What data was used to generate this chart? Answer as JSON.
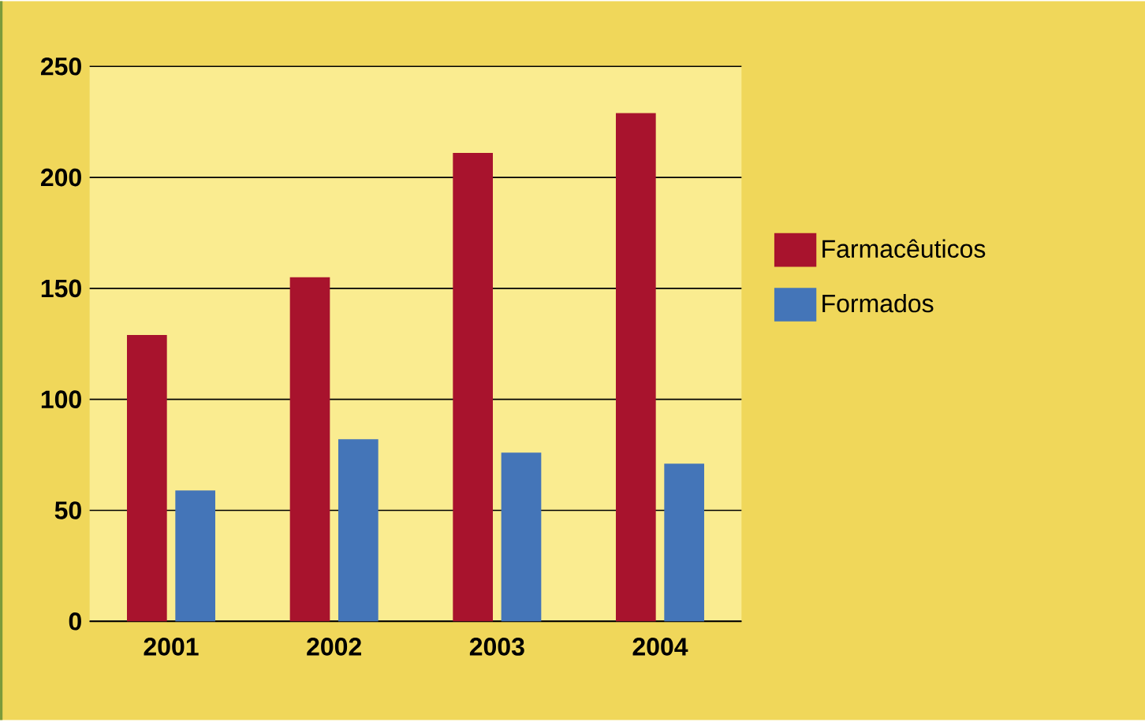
{
  "chart_data": {
    "type": "bar",
    "categories": [
      "2001",
      "2002",
      "2003",
      "2004"
    ],
    "series": [
      {
        "name": "Farmacêuticos",
        "color": "#a8132d",
        "values": [
          129,
          155,
          211,
          229
        ]
      },
      {
        "name": "Formados",
        "color": "#4475b8",
        "values": [
          59,
          82,
          76,
          71
        ]
      }
    ],
    "ylim": [
      0,
      250
    ],
    "yticks": [
      0,
      50,
      100,
      150,
      200,
      250
    ],
    "grid": "y",
    "legend": "right"
  }
}
